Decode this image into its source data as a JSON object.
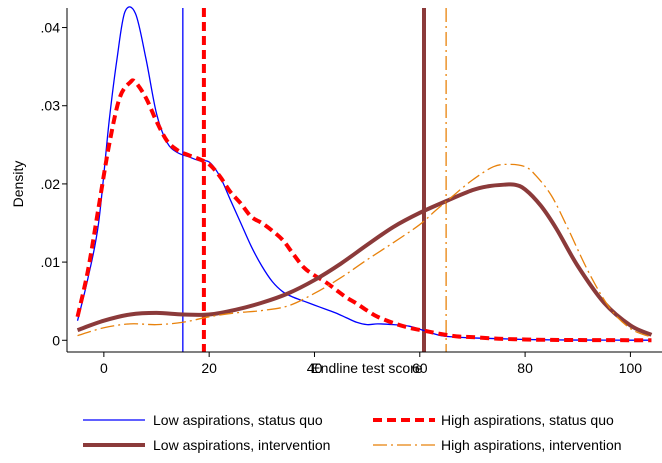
{
  "chart_data": {
    "type": "line",
    "title": "",
    "xlabel": "Endline test score",
    "ylabel": "Density",
    "xlim": [
      -7,
      106
    ],
    "ylim": [
      -0.0015,
      0.0425
    ],
    "x_ticks": [
      0,
      20,
      40,
      60,
      80,
      100
    ],
    "x_tick_labels": [
      "0",
      "20",
      "40",
      "60",
      "80",
      "100"
    ],
    "y_ticks": [
      0,
      0.01,
      0.02,
      0.03,
      0.04
    ],
    "y_tick_labels": [
      "0",
      ".01",
      ".02",
      ".03",
      ".04"
    ],
    "grid": false,
    "legend_position": "bottom",
    "series": [
      {
        "name": "Low aspirations, status quo",
        "color": "#0000ff",
        "style": "solid-thin",
        "x": [
          -5,
          -3,
          -1,
          1,
          2.5,
          4,
          6,
          8,
          10,
          12,
          14,
          16,
          18,
          20,
          22,
          24,
          26,
          28,
          30,
          32,
          34,
          36,
          38,
          40,
          42,
          44,
          46,
          48,
          50,
          52,
          55,
          58,
          61,
          64,
          67,
          70,
          75,
          80,
          85,
          90,
          95,
          100,
          104
        ],
        "y": [
          0.0025,
          0.008,
          0.015,
          0.028,
          0.036,
          0.042,
          0.0418,
          0.036,
          0.029,
          0.0253,
          0.024,
          0.0235,
          0.023,
          0.0228,
          0.021,
          0.018,
          0.015,
          0.012,
          0.0095,
          0.0075,
          0.0062,
          0.0055,
          0.005,
          0.0045,
          0.004,
          0.0035,
          0.0029,
          0.0023,
          0.002,
          0.0021,
          0.002,
          0.0018,
          0.0012,
          0.0006,
          0.0004,
          0.0003,
          0.0002,
          0.0001,
          5e-05,
          3e-05,
          2e-05,
          1e-05,
          1e-05
        ]
      },
      {
        "name": "High aspirations, status quo",
        "color": "#ff0000",
        "style": "dashed-thick",
        "x": [
          -5,
          -3,
          -1,
          1,
          3,
          5,
          6,
          8,
          10,
          12,
          14,
          16,
          18,
          20,
          22,
          24,
          26,
          28,
          30,
          32,
          34,
          36,
          38,
          40,
          42,
          44,
          46,
          48,
          50,
          52,
          55,
          58,
          61,
          64,
          67,
          70,
          75,
          80,
          85,
          90,
          95,
          100,
          104
        ],
        "y": [
          0.003,
          0.009,
          0.017,
          0.025,
          0.031,
          0.033,
          0.033,
          0.031,
          0.028,
          0.0255,
          0.0243,
          0.0237,
          0.0232,
          0.0225,
          0.021,
          0.019,
          0.0175,
          0.0158,
          0.015,
          0.014,
          0.0128,
          0.011,
          0.0093,
          0.0083,
          0.0075,
          0.0065,
          0.0055,
          0.0047,
          0.0038,
          0.003,
          0.0022,
          0.0016,
          0.0012,
          0.0008,
          0.0005,
          0.0004,
          0.0002,
          0.0001,
          5e-05,
          3e-05,
          2e-05,
          1e-05,
          1e-05
        ]
      },
      {
        "name": "Low aspirations, intervention",
        "color": "#8b3a3a",
        "style": "solid-thick",
        "x": [
          -5,
          0,
          5,
          10,
          15,
          20,
          25,
          30,
          35,
          40,
          45,
          50,
          55,
          60,
          65,
          70,
          73,
          76,
          78,
          80,
          83,
          86,
          90,
          95,
          100,
          104
        ],
        "y": [
          0.0013,
          0.0025,
          0.0033,
          0.0035,
          0.0033,
          0.0033,
          0.0039,
          0.0048,
          0.006,
          0.0077,
          0.0098,
          0.0122,
          0.0145,
          0.0163,
          0.0178,
          0.0192,
          0.0197,
          0.0199,
          0.0199,
          0.0193,
          0.0172,
          0.0142,
          0.0095,
          0.0048,
          0.0019,
          0.0007
        ]
      },
      {
        "name": "High aspirations, intervention",
        "color": "#e8820c",
        "style": "dashdot-thin",
        "x": [
          -5,
          0,
          5,
          10,
          15,
          20,
          25,
          30,
          35,
          40,
          45,
          50,
          55,
          60,
          63,
          66,
          70,
          74,
          77,
          80,
          82,
          85,
          88,
          92,
          96,
          100,
          104
        ],
        "y": [
          0.0006,
          0.0016,
          0.0021,
          0.002,
          0.0023,
          0.003,
          0.0035,
          0.0038,
          0.0044,
          0.006,
          0.008,
          0.0103,
          0.0125,
          0.0148,
          0.0166,
          0.0183,
          0.0205,
          0.0222,
          0.0225,
          0.0222,
          0.0211,
          0.0185,
          0.0145,
          0.0088,
          0.0042,
          0.0015,
          0.0004
        ]
      }
    ],
    "reference_lines": [
      {
        "series": "Low aspirations, status quo",
        "x": 15,
        "color": "#0000ff",
        "style": "solid-thin"
      },
      {
        "series": "High aspirations, status quo",
        "x": 19,
        "color": "#ff0000",
        "style": "dashed-thick"
      },
      {
        "series": "Low aspirations, intervention",
        "x": 60.8,
        "color": "#8b3a3a",
        "style": "solid-thick"
      },
      {
        "series": "High aspirations, intervention",
        "x": 65,
        "color": "#e8820c",
        "style": "dashdot-thin"
      }
    ]
  }
}
